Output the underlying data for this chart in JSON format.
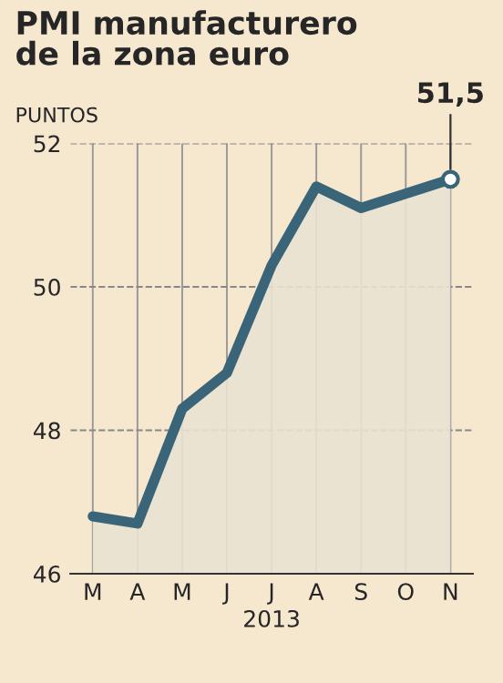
{
  "chart_data": {
    "type": "area",
    "title": "PMI manufacturero\nde la zona euro",
    "ylabel": "PUNTOS",
    "xlabel": "2013",
    "categories": [
      "M",
      "A",
      "M",
      "J",
      "J",
      "A",
      "S",
      "O",
      "N"
    ],
    "series": [
      {
        "color": "#3a6478",
        "values": [
          46.8,
          46.7,
          48.3,
          48.8,
          50.3,
          51.4,
          51.1,
          51.3,
          51.5
        ],
        "value_labels": [
          null,
          null,
          null,
          null,
          null,
          null,
          null,
          null,
          "51,5"
        ]
      }
    ],
    "ylim": [
      46,
      52
    ],
    "yticks": [
      46,
      48,
      50,
      52
    ],
    "grid": true,
    "line_style": "solid"
  }
}
